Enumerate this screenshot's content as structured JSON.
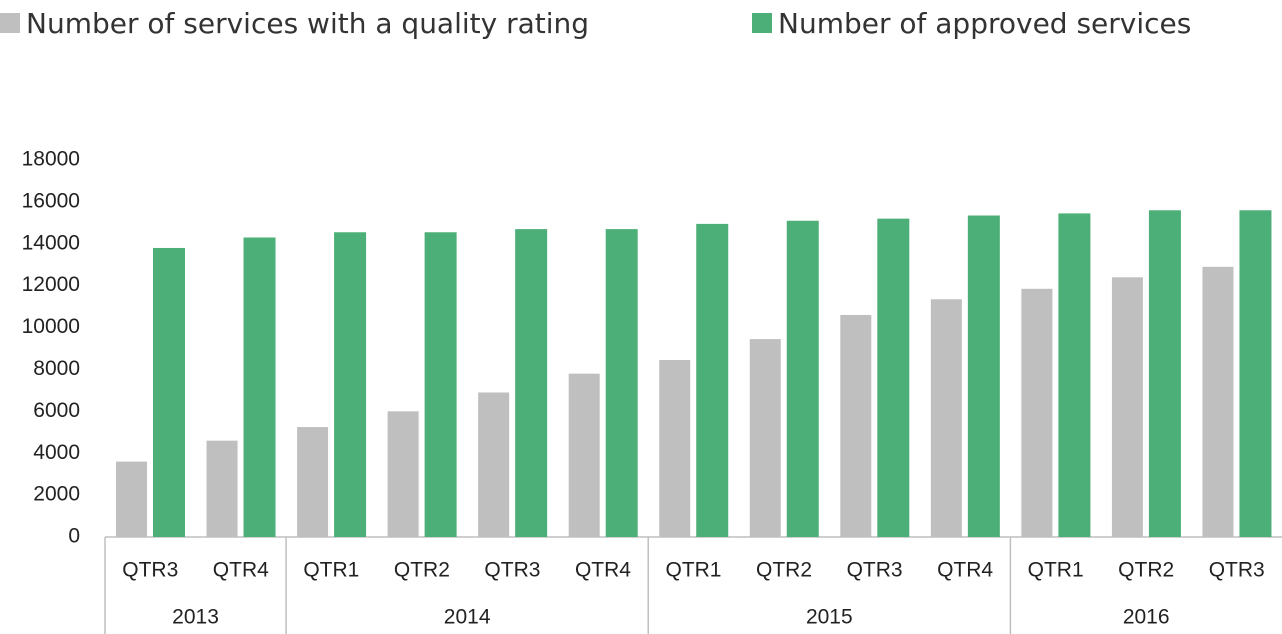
{
  "chart_data": {
    "type": "bar",
    "groups": [
      {
        "label": "2013",
        "categories": [
          "QTR3",
          "QTR4"
        ]
      },
      {
        "label": "2014",
        "categories": [
          "QTR1",
          "QTR2",
          "QTR3",
          "QTR4"
        ]
      },
      {
        "label": "2015",
        "categories": [
          "QTR1",
          "QTR2",
          "QTR3",
          "QTR4"
        ]
      },
      {
        "label": "2016",
        "categories": [
          "QTR1",
          "QTR2",
          "QTR3"
        ]
      }
    ],
    "series": [
      {
        "name": "Number of services with a quality rating",
        "color": "#bfbfbf",
        "values": [
          3600,
          4600,
          5250,
          6000,
          6900,
          7800,
          8450,
          9450,
          10600,
          11350,
          11850,
          12400,
          12900
        ]
      },
      {
        "name": "Number of approved services",
        "color": "#4caf78",
        "values": [
          13800,
          14300,
          14550,
          14550,
          14700,
          14700,
          14950,
          15100,
          15200,
          15350,
          15450,
          15600,
          15600
        ]
      }
    ],
    "ylim": [
      0,
      18000
    ],
    "yticks": [
      0,
      2000,
      4000,
      6000,
      8000,
      10000,
      12000,
      14000,
      16000,
      18000
    ],
    "grid": false,
    "legend": "top"
  }
}
